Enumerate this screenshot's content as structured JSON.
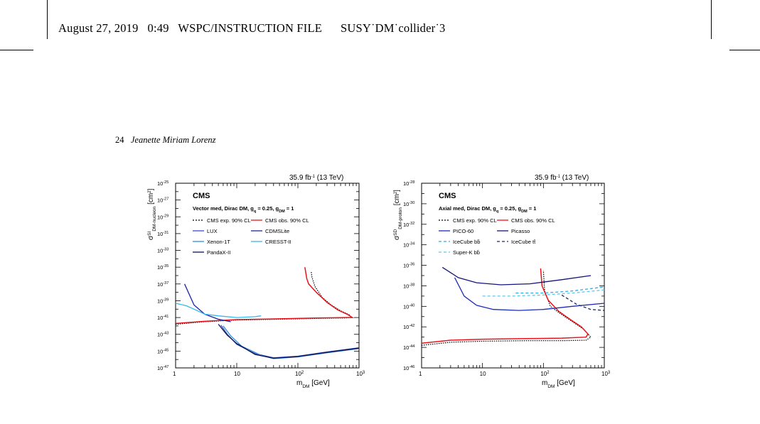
{
  "running_head": {
    "date": "August 27, 2019",
    "time": "0:49",
    "file_type": "WSPC/INSTRUCTION FILE",
    "filename": "SUSY˙DM˙collider˙3"
  },
  "folio": {
    "page_number": "24",
    "author": "Jeanette Miriam Lorenz"
  },
  "figure": {
    "panels": [
      {
        "lumi": "35.9 fb",
        "lumi_sup": "-1",
        "energy": " (13 TeV)",
        "experiment": "CMS",
        "model_prefix": "Vector med, Dirac DM, g",
        "model_q_sub": "q",
        "model_mid": " = 0.25, g",
        "model_dm_sub": "DM",
        "model_suffix": " = 1",
        "y_label_main": "σ",
        "y_label_sup": "SI",
        "y_label_sub": "DM-nucleon",
        "y_label_unit": " [cm",
        "y_label_unit_sup": "2",
        "y_label_close": "]",
        "x_label_main": "m",
        "x_label_sub": "DM",
        "x_label_unit": " [GeV]",
        "y_ticks": [
          "10",
          "10",
          "10",
          "10",
          "10",
          "10",
          "10",
          "10",
          "10",
          "10",
          "10",
          "10"
        ],
        "y_tick_exps": [
          "-25",
          "-27",
          "-29",
          "-31",
          "-33",
          "-35",
          "-37",
          "-39",
          "-41",
          "-43",
          "-45",
          "-47"
        ],
        "x_ticks": [
          "1",
          "10",
          "10",
          "10"
        ],
        "x_tick_exps": [
          "",
          "",
          "2",
          "3"
        ],
        "legend": [
          {
            "label": "CMS exp. 90% CL",
            "color": "#000000",
            "dash": "2,2"
          },
          {
            "label": "CMS obs. 90% CL",
            "color": "#e8141b",
            "dash": ""
          },
          {
            "label": "LUX",
            "color": "#3a4bd0",
            "dash": ""
          },
          {
            "label": "CDMSLite",
            "color": "#1c22a8",
            "dash": ""
          },
          {
            "label": "Xenon-1T",
            "color": "#2e8fd8",
            "dash": ""
          },
          {
            "label": "CRESST-II",
            "color": "#35b8e8",
            "dash": ""
          },
          {
            "label": "PandaX-II",
            "color": "#12124a",
            "dash": ""
          }
        ]
      },
      {
        "lumi": "35.9 fb",
        "lumi_sup": "-1",
        "energy": " (13 TeV)",
        "experiment": "CMS",
        "model_prefix": "Axial med, Dirac DM, g",
        "model_q_sub": "q",
        "model_mid": " = 0.25, g",
        "model_dm_sub": "DM",
        "model_suffix": " = 1",
        "y_label_main": "σ",
        "y_label_sup": "SD",
        "y_label_sub": "DM-proton",
        "y_label_unit": " [cm",
        "y_label_unit_sup": "2",
        "y_label_close": "]",
        "x_label_main": "m",
        "x_label_sub": "DM",
        "x_label_unit": " [GeV]",
        "y_ticks": [
          "10",
          "10",
          "10",
          "10",
          "10",
          "10",
          "10",
          "10",
          "10",
          "10"
        ],
        "y_tick_exps": [
          "-28",
          "-30",
          "-32",
          "-34",
          "-36",
          "-38",
          "-40",
          "-42",
          "-44",
          "-46"
        ],
        "x_ticks": [
          "1",
          "10",
          "10",
          "10"
        ],
        "x_tick_exps": [
          "",
          "",
          "2",
          "3"
        ],
        "legend": [
          {
            "label": "CMS exp. 90% CL",
            "color": "#000000",
            "dash": "2,2"
          },
          {
            "label": "CMS obs. 90% CL",
            "color": "#e8141b",
            "dash": ""
          },
          {
            "label": "PICO-60",
            "color": "#1c2ab8",
            "dash": ""
          },
          {
            "label": "Picasso",
            "color": "#14147a",
            "dash": ""
          },
          {
            "label": "IceCube bb̄",
            "color": "#35a8e0",
            "dash": "4,3"
          },
          {
            "label": "IceCube tt̄",
            "color": "#1a2a5a",
            "dash": "4,3"
          },
          {
            "label": "Super-K bb̄",
            "color": "#5cc8f0",
            "dash": "4,3"
          }
        ]
      }
    ]
  }
}
